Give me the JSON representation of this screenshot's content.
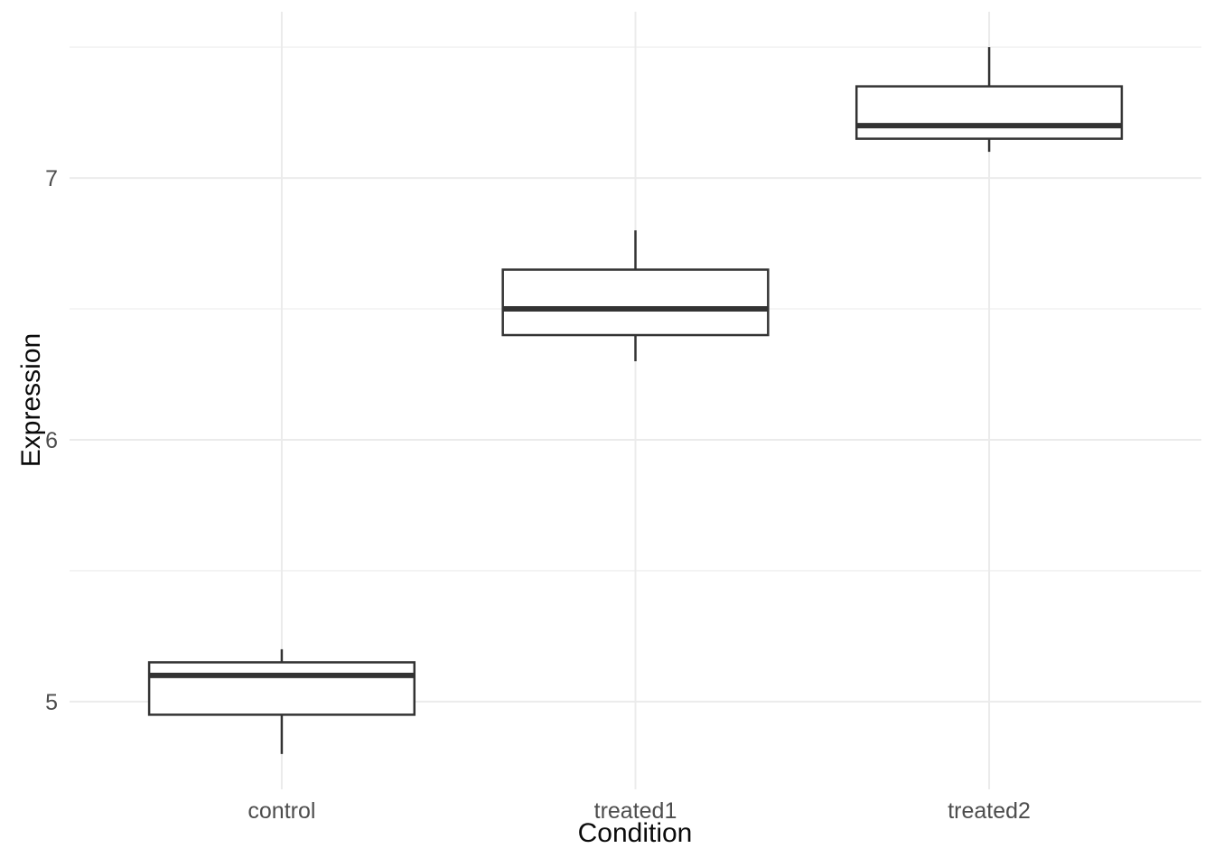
{
  "chart_data": {
    "type": "boxplot",
    "title": "",
    "xlabel": "Condition",
    "ylabel": "Expression",
    "categories": [
      "control",
      "treated1",
      "treated2"
    ],
    "series": [
      {
        "name": "control",
        "whisker_low": 4.8,
        "q1": 4.95,
        "median": 5.1,
        "q3": 5.15,
        "whisker_high": 5.2
      },
      {
        "name": "treated1",
        "whisker_low": 6.3,
        "q1": 6.4,
        "median": 6.5,
        "q3": 6.65,
        "whisker_high": 6.8
      },
      {
        "name": "treated2",
        "whisker_low": 7.1,
        "q1": 7.15,
        "median": 7.2,
        "q3": 7.35,
        "whisker_high": 7.5
      }
    ],
    "yticks": [
      5,
      6,
      7
    ],
    "ytick_labels": [
      "5",
      "6",
      "7"
    ],
    "yticks_minor": [
      5.5,
      6.5,
      7.5
    ],
    "ylim": [
      4.665,
      7.635
    ],
    "grid": "horizontal major + minor, vertical major at categories; no axis lines, no tick marks",
    "legend": "none",
    "style": "ggplot2 theme_minimal",
    "colors": {
      "background": "#ffffff",
      "grid_major": "#ebebeb",
      "grid_minor": "#efefef",
      "box_stroke": "#333333",
      "box_fill": "#ffffff",
      "tick_label": "#4d4d4d",
      "axis_title": "#0a0a0a"
    }
  }
}
